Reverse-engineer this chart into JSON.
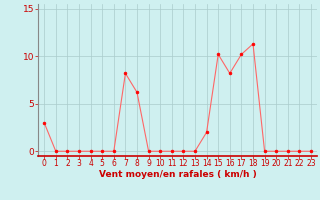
{
  "x": [
    0,
    1,
    2,
    3,
    4,
    5,
    6,
    7,
    8,
    9,
    10,
    11,
    12,
    13,
    14,
    15,
    16,
    17,
    18,
    19,
    20,
    21,
    22,
    23
  ],
  "y": [
    3,
    0,
    0,
    0,
    0,
    0,
    0,
    8.2,
    6.2,
    0,
    0,
    0,
    0,
    0,
    2,
    10.2,
    8.2,
    10.2,
    11.3,
    0,
    0,
    0,
    0,
    0
  ],
  "line_color": "#ff6666",
  "marker_color": "#ff0000",
  "bg_color": "#cff0f0",
  "grid_color": "#aacccc",
  "xlabel": "Vent moyen/en rafales ( km/h )",
  "xlabel_color": "#cc0000",
  "tick_color": "#cc0000",
  "ylim": [
    -0.5,
    15.5
  ],
  "xlim": [
    -0.5,
    23.5
  ],
  "yticks": [
    0,
    5,
    10,
    15
  ],
  "xticks": [
    0,
    1,
    2,
    3,
    4,
    5,
    6,
    7,
    8,
    9,
    10,
    11,
    12,
    13,
    14,
    15,
    16,
    17,
    18,
    19,
    20,
    21,
    22,
    23
  ]
}
